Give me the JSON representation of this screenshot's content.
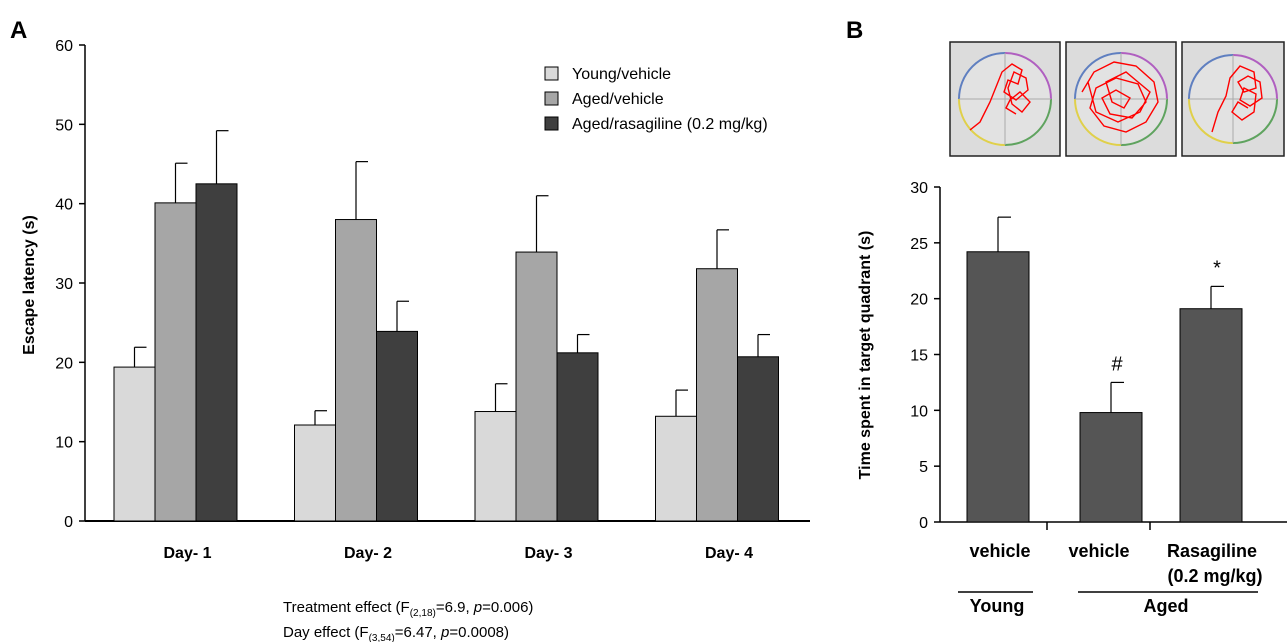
{
  "panels": {
    "a": "A",
    "b": "B"
  },
  "colors": {
    "young_vehicle": "#d9d9d9",
    "aged_vehicle": "#a6a6a6",
    "aged_rasagiline": "#3f3f3f",
    "panel_b_bar": "#555555",
    "track": "#ff0000"
  },
  "chart_data": [
    {
      "id": "A",
      "type": "bar",
      "categories": [
        "Day- 1",
        "Day- 2",
        "Day- 3",
        "Day- 4"
      ],
      "ylabel": "Escape latency (s)",
      "ylim": [
        0,
        60
      ],
      "yticks": [
        0,
        10,
        20,
        30,
        40,
        50,
        60
      ],
      "legend_position": "top-right",
      "series": [
        {
          "name": "Young/vehicle",
          "values": [
            19.4,
            12.1,
            13.8,
            13.2
          ],
          "errors": [
            2.5,
            1.8,
            3.5,
            3.3
          ]
        },
        {
          "name": "Aged/vehicle",
          "values": [
            40.1,
            38.0,
            33.9,
            31.8
          ],
          "errors": [
            5.0,
            7.3,
            7.1,
            4.9
          ]
        },
        {
          "name": "Aged/rasagiline (0.2 mg/kg)",
          "values": [
            42.5,
            23.9,
            21.2,
            20.7
          ],
          "errors": [
            6.7,
            3.8,
            2.3,
            2.8
          ]
        }
      ],
      "annotations": {
        "treatment": {
          "pre": "Treatment effect (F",
          "sub": "(2,18)",
          "mid": "=6.9, ",
          "p": "p",
          "post": "=0.006)"
        },
        "day": {
          "pre": "Day effect (F",
          "sub": "(3,54)",
          "mid": "=6.47, ",
          "p": "p",
          "post": "=0.0008)"
        }
      }
    },
    {
      "id": "B",
      "type": "bar",
      "categories": [
        "vehicle",
        "vehicle",
        "Rasagiline"
      ],
      "category_sublabel": "(0.2 mg/kg)",
      "groups": [
        {
          "label": "Young",
          "categories": [
            0
          ]
        },
        {
          "label": "Aged",
          "categories": [
            1,
            2
          ]
        }
      ],
      "ylabel": "Time spent in target quadrant (s)",
      "ylim": [
        0,
        30
      ],
      "yticks": [
        0,
        5,
        10,
        15,
        20,
        25,
        30
      ],
      "values": [
        24.2,
        9.8,
        19.1
      ],
      "errors": [
        3.1,
        2.7,
        2.0
      ],
      "significance": [
        "",
        "#",
        "*"
      ]
    }
  ]
}
